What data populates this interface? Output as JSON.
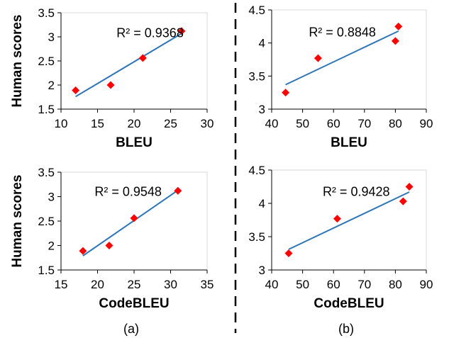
{
  "colors": {
    "marker": "#ff0000",
    "trendline": "#2e75b6",
    "axis": "#000000"
  },
  "divider": {
    "style": "dashed"
  },
  "chart_data": [
    {
      "type": "scatter",
      "panel": "top-left",
      "xlabel": "BLEU",
      "ylabel": "Human scores",
      "xlim": [
        10,
        30
      ],
      "xticks": [
        10,
        15,
        20,
        25,
        30
      ],
      "ylim": [
        1.5,
        3.5
      ],
      "yticks": [
        "1.5",
        "2",
        "2.5",
        "3",
        "3.5"
      ],
      "points": [
        [
          12.0,
          1.89
        ],
        [
          16.8,
          2.0
        ],
        [
          21.2,
          2.56
        ],
        [
          26.5,
          3.12
        ]
      ],
      "trendline": [
        [
          12.0,
          1.76
        ],
        [
          26.5,
          3.07
        ]
      ],
      "annotation": "R² = 0.9368",
      "caption": "",
      "grid": false
    },
    {
      "type": "scatter",
      "panel": "top-right",
      "xlabel": "BLEU",
      "ylabel": "",
      "xlim": [
        40,
        90
      ],
      "xticks": [
        40,
        50,
        60,
        70,
        80,
        90
      ],
      "ylim": [
        3,
        4.5
      ],
      "yticks": [
        "3",
        "3.5",
        "4",
        "4.5"
      ],
      "points": [
        [
          44.5,
          3.25
        ],
        [
          55.0,
          3.77
        ],
        [
          80.0,
          4.03
        ],
        [
          81.0,
          4.25
        ]
      ],
      "trendline": [
        [
          44.5,
          3.37
        ],
        [
          81.0,
          4.18
        ]
      ],
      "annotation": "R² = 0.8848",
      "caption": "",
      "grid": false
    },
    {
      "type": "scatter",
      "panel": "bottom-left",
      "xlabel": "CodeBLEU",
      "ylabel": "Human scores",
      "xlim": [
        15,
        35
      ],
      "xticks": [
        15,
        20,
        25,
        30,
        35
      ],
      "ylim": [
        1.5,
        3.5
      ],
      "yticks": [
        "1.5",
        "2",
        "2.5",
        "3",
        "3.5"
      ],
      "points": [
        [
          18.0,
          1.89
        ],
        [
          21.6,
          2.0
        ],
        [
          25.0,
          2.56
        ],
        [
          31.0,
          3.12
        ]
      ],
      "trendline": [
        [
          18.0,
          1.79
        ],
        [
          31.0,
          3.13
        ]
      ],
      "annotation": "R² = 0.9548",
      "caption": "(a)",
      "grid": false
    },
    {
      "type": "scatter",
      "panel": "bottom-right",
      "xlabel": "CodeBLEU",
      "ylabel": "",
      "xlim": [
        40,
        90
      ],
      "xticks": [
        40,
        50,
        60,
        70,
        80,
        90
      ],
      "ylim": [
        3,
        4.5
      ],
      "yticks": [
        "3",
        "3.5",
        "4",
        "4.5"
      ],
      "points": [
        [
          45.5,
          3.25
        ],
        [
          61.2,
          3.77
        ],
        [
          82.5,
          4.03
        ],
        [
          84.5,
          4.25
        ]
      ],
      "trendline": [
        [
          45.5,
          3.31
        ],
        [
          84.5,
          4.17
        ]
      ],
      "annotation": "R² = 0.9428",
      "caption": "(b)",
      "grid": false
    }
  ]
}
